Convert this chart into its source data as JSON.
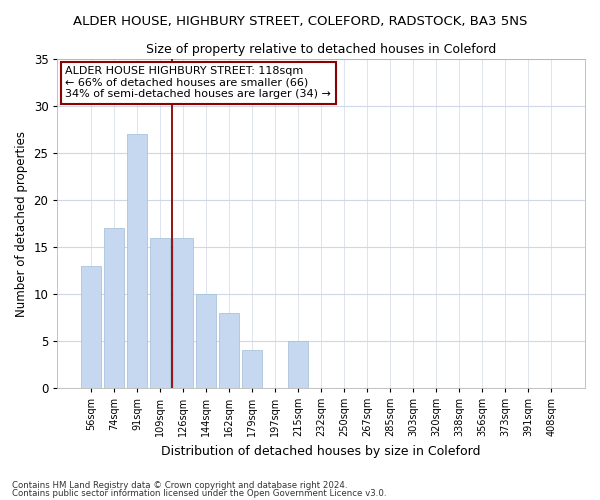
{
  "title": "ALDER HOUSE, HIGHBURY STREET, COLEFORD, RADSTOCK, BA3 5NS",
  "subtitle": "Size of property relative to detached houses in Coleford",
  "xlabel": "Distribution of detached houses by size in Coleford",
  "ylabel": "Number of detached properties",
  "bar_color": "#c5d8ef",
  "bar_edge_color": "#a0bcd8",
  "background_color": "#ffffff",
  "fig_background_color": "#ffffff",
  "grid_color": "#d0d8e8",
  "categories": [
    "56sqm",
    "74sqm",
    "91sqm",
    "109sqm",
    "126sqm",
    "144sqm",
    "162sqm",
    "179sqm",
    "197sqm",
    "215sqm",
    "232sqm",
    "250sqm",
    "267sqm",
    "285sqm",
    "303sqm",
    "320sqm",
    "338sqm",
    "356sqm",
    "373sqm",
    "391sqm",
    "408sqm"
  ],
  "values": [
    13,
    17,
    27,
    16,
    16,
    10,
    8,
    4,
    0,
    5,
    0,
    0,
    0,
    0,
    0,
    0,
    0,
    0,
    0,
    0,
    0
  ],
  "ylim": [
    0,
    35
  ],
  "yticks": [
    0,
    5,
    10,
    15,
    20,
    25,
    30,
    35
  ],
  "property_label": "ALDER HOUSE HIGHBURY STREET: 118sqm",
  "annotation_line1": "← 66% of detached houses are smaller (66)",
  "annotation_line2": "34% of semi-detached houses are larger (34) →",
  "vline_position": 3.5,
  "footnote1": "Contains HM Land Registry data © Crown copyright and database right 2024.",
  "footnote2": "Contains public sector information licensed under the Open Government Licence v3.0."
}
